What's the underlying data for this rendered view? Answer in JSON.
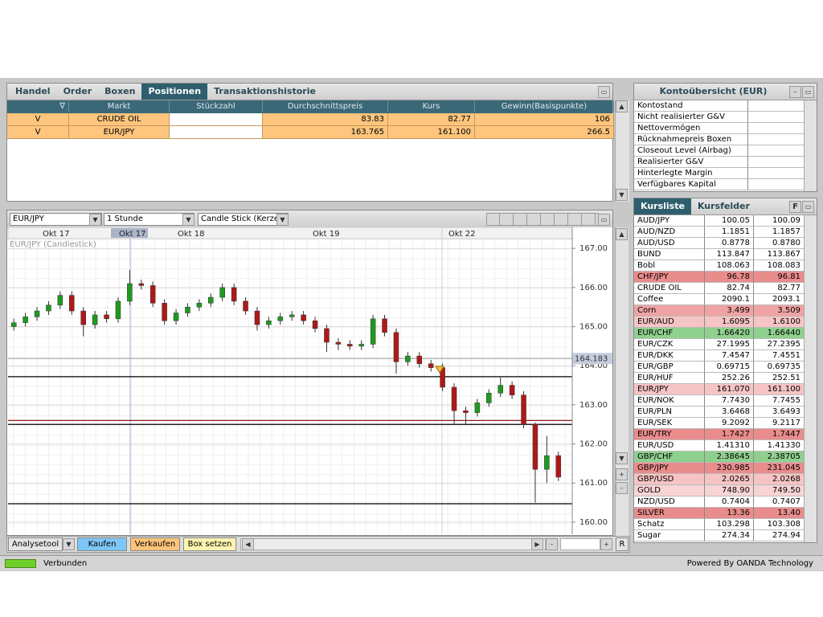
{
  "tabs": [
    "Handel",
    "Order",
    "Boxen",
    "Positionen",
    "Transaktionshistorie"
  ],
  "active_tab": 3,
  "positions": {
    "columns": [
      "∇",
      "Markt",
      "Stückzahl",
      "Durchschnittspreis",
      "Kurs",
      "Gewinn(Basispunkte)"
    ],
    "rows": [
      [
        "V",
        "CRUDE OIL",
        null,
        "83.83",
        "82.77",
        "106"
      ],
      [
        "V",
        "EUR/JPY",
        null,
        "163.765",
        "161.100",
        "266.5"
      ]
    ]
  },
  "account": {
    "title": "Kontoübersicht (EUR)",
    "rows": [
      "Kontostand",
      "Nicht realisierter G&V",
      "Nettovermögen",
      "Rücknahmepreis Boxen",
      "Closeout Level (Airbag)",
      "Realisierter G&V",
      "Hinterlegte Margin",
      "Verfügbares Kapital"
    ]
  },
  "quotes": {
    "tabs": [
      "Kursliste",
      "Kursfelder"
    ],
    "button": "F",
    "rows": [
      {
        "name": "AUD/JPY",
        "bid": "100.05",
        "ask": "100.09"
      },
      {
        "name": "AUD/NZD",
        "bid": "1.1851",
        "ask": "1.1857"
      },
      {
        "name": "AUD/USD",
        "bid": "0.8778",
        "ask": "0.8780"
      },
      {
        "name": "BUND",
        "bid": "113.847",
        "ask": "113.867"
      },
      {
        "name": "Bobl",
        "bid": "108.063",
        "ask": "108.083"
      },
      {
        "name": "CHF/JPY",
        "bid": "96.78",
        "ask": "96.81",
        "color": "#e98c8c"
      },
      {
        "name": "CRUDE OIL",
        "bid": "82.74",
        "ask": "82.77"
      },
      {
        "name": "Coffee",
        "bid": "2090.1",
        "ask": "2093.1"
      },
      {
        "name": "Corn",
        "bid": "3.499",
        "ask": "3.509",
        "color": "#f0a3a3"
      },
      {
        "name": "EUR/AUD",
        "bid": "1.6095",
        "ask": "1.6100",
        "color": "#f6c4c4"
      },
      {
        "name": "EUR/CHF",
        "bid": "1.66420",
        "ask": "1.66440",
        "color": "#8fd08f"
      },
      {
        "name": "EUR/CZK",
        "bid": "27.1995",
        "ask": "27.2395"
      },
      {
        "name": "EUR/DKK",
        "bid": "7.4547",
        "ask": "7.4551"
      },
      {
        "name": "EUR/GBP",
        "bid": "0.69715",
        "ask": "0.69735"
      },
      {
        "name": "EUR/HUF",
        "bid": "252.26",
        "ask": "252.51"
      },
      {
        "name": "EUR/JPY",
        "bid": "161.070",
        "ask": "161.100",
        "color": "#f6c4c4"
      },
      {
        "name": "EUR/NOK",
        "bid": "7.7430",
        "ask": "7.7455"
      },
      {
        "name": "EUR/PLN",
        "bid": "3.6468",
        "ask": "3.6493"
      },
      {
        "name": "EUR/SEK",
        "bid": "9.2092",
        "ask": "9.2117"
      },
      {
        "name": "EUR/TRY",
        "bid": "1.7427",
        "ask": "1.7447",
        "color": "#e98c8c"
      },
      {
        "name": "EUR/USD",
        "bid": "1.41310",
        "ask": "1.41330"
      },
      {
        "name": "GBP/CHF",
        "bid": "2.38645",
        "ask": "2.38705",
        "color": "#8fd08f"
      },
      {
        "name": "GBP/JPY",
        "bid": "230.985",
        "ask": "231.045",
        "color": "#e98c8c"
      },
      {
        "name": "GBP/USD",
        "bid": "2.0265",
        "ask": "2.0268",
        "color": "#f6c4c4"
      },
      {
        "name": "GOLD",
        "bid": "748.90",
        "ask": "749.50",
        "color": "#f8d4d4"
      },
      {
        "name": "NZD/USD",
        "bid": "0.7404",
        "ask": "0.7407"
      },
      {
        "name": "SILVER",
        "bid": "13.36",
        "ask": "13.40",
        "color": "#e98c8c"
      },
      {
        "name": "Schatz",
        "bid": "103.298",
        "ask": "103.308"
      },
      {
        "name": "Sugar",
        "bid": "274.34",
        "ask": "274.94"
      }
    ]
  },
  "chart_toolbar": {
    "instrument": "EUR/JPY",
    "interval": "1 Stunde",
    "style": "Candle Stick (Kerze"
  },
  "chart_data": {
    "type": "candlestick",
    "subtitle": "EUR/JPY (Candlestick)",
    "x_labels": [
      "Okt 17",
      "Okt 17",
      "Okt 18",
      "Okt 19",
      "Okt 22"
    ],
    "open": [
      165.0,
      165.1,
      165.25,
      165.4,
      165.55,
      165.8,
      165.4,
      165.05,
      165.3,
      165.2,
      165.65,
      166.1,
      166.05,
      165.6,
      165.15,
      165.35,
      165.5,
      165.6,
      165.75,
      166.0,
      165.65,
      165.4,
      165.05,
      165.15,
      165.25,
      165.3,
      165.15,
      164.95,
      164.6,
      164.55,
      164.5,
      164.55,
      165.2,
      164.85,
      164.1,
      164.25,
      164.05,
      163.95,
      163.45,
      162.85,
      162.8,
      163.05,
      163.3,
      163.5,
      163.25,
      162.5,
      161.35,
      161.7
    ],
    "high": [
      165.2,
      165.35,
      165.5,
      165.65,
      165.9,
      165.9,
      165.5,
      165.4,
      165.4,
      165.75,
      166.45,
      166.2,
      166.15,
      165.7,
      165.45,
      165.6,
      165.7,
      165.85,
      166.1,
      166.1,
      165.75,
      165.5,
      165.25,
      165.35,
      165.4,
      165.4,
      165.25,
      165.05,
      164.7,
      164.65,
      164.65,
      165.3,
      165.3,
      164.95,
      164.35,
      164.35,
      164.15,
      164.05,
      163.55,
      162.95,
      163.15,
      163.4,
      163.7,
      163.6,
      163.35,
      162.55,
      162.2,
      161.8
    ],
    "low": [
      164.9,
      165.0,
      165.15,
      165.3,
      165.45,
      165.3,
      164.75,
      164.95,
      165.1,
      165.1,
      165.55,
      165.95,
      165.5,
      165.05,
      165.05,
      165.25,
      165.4,
      165.5,
      165.65,
      165.55,
      165.3,
      164.9,
      164.95,
      165.05,
      165.15,
      165.05,
      164.85,
      164.35,
      164.4,
      164.4,
      164.4,
      164.45,
      164.75,
      163.8,
      164.0,
      163.95,
      163.85,
      163.35,
      162.5,
      162.5,
      162.7,
      162.95,
      163.2,
      163.15,
      162.4,
      160.5,
      161.0,
      161.05
    ],
    "close": [
      165.1,
      165.25,
      165.4,
      165.55,
      165.8,
      165.4,
      165.05,
      165.3,
      165.2,
      165.65,
      166.1,
      166.05,
      165.6,
      165.15,
      165.35,
      165.5,
      165.6,
      165.75,
      166.0,
      165.65,
      165.4,
      165.05,
      165.15,
      165.25,
      165.3,
      165.15,
      164.95,
      164.6,
      164.55,
      164.5,
      164.55,
      165.2,
      164.85,
      164.1,
      164.25,
      164.05,
      163.95,
      163.45,
      162.85,
      162.8,
      163.05,
      163.3,
      163.5,
      163.25,
      162.5,
      161.35,
      161.7,
      161.15
    ],
    "up_color": "#1e9a1e",
    "down_color": "#b01818",
    "ylim": [
      159.69,
      167.23
    ],
    "yticks": [
      {
        "value": 160,
        "label": "160.00"
      },
      {
        "value": 161,
        "label": "161.00"
      },
      {
        "value": 162,
        "label": "162.00"
      },
      {
        "value": 163,
        "label": "163.00"
      },
      {
        "value": 164,
        "label": "164.00"
      },
      {
        "value": 165,
        "label": "165.00"
      },
      {
        "value": 166,
        "label": "166.00"
      },
      {
        "value": 167,
        "label": "167.00"
      }
    ],
    "current_price": {
      "value": 164.183,
      "label": "164.183"
    },
    "levels": [
      {
        "value": 163.72,
        "color": "#000000"
      },
      {
        "value": 162.6,
        "color": "#8b1a1a"
      },
      {
        "value": 162.5,
        "color": "#000000"
      },
      {
        "value": 160.47,
        "color": "#000000"
      }
    ],
    "grid": true
  },
  "buttons": [
    "Analysetool",
    "Kaufen",
    "Verkaufen",
    "Box setzen",
    "R"
  ],
  "status": {
    "connection": "Verbunden",
    "powered_by": "Powered By OANDA Technology"
  }
}
